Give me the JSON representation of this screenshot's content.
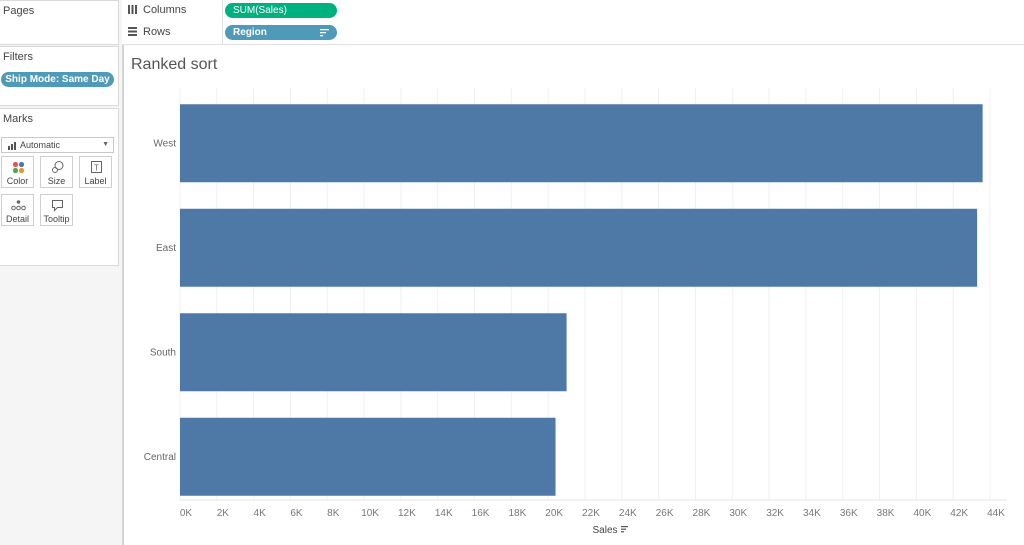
{
  "panels": {
    "pages": {
      "title": "Pages"
    },
    "filters": {
      "title": "Filters",
      "pill": "Ship Mode: Same Day"
    },
    "marks": {
      "title": "Marks",
      "type": "Automatic",
      "buttons": [
        {
          "label": "Color",
          "icon": "color-icon"
        },
        {
          "label": "Size",
          "icon": "size-icon"
        },
        {
          "label": "Label",
          "icon": "label-icon"
        },
        {
          "label": "Detail",
          "icon": "detail-icon"
        },
        {
          "label": "Tooltip",
          "icon": "tooltip-icon"
        }
      ]
    }
  },
  "shelves": {
    "columns": {
      "label": "Columns",
      "pill": "SUM(Sales)"
    },
    "rows": {
      "label": "Rows",
      "pill": "Region"
    }
  },
  "colors": {
    "bar": "#4e79a7",
    "measure_pill": "#00b180",
    "dimension_pill": "#4f9ab8"
  },
  "chart_data": {
    "type": "bar",
    "orientation": "horizontal",
    "title": "Ranked sort",
    "xlabel": "Sales",
    "ylabel": "",
    "categories": [
      "West",
      "East",
      "South",
      "Central"
    ],
    "values": [
      43600,
      43300,
      21000,
      20400
    ],
    "xlim": [
      0,
      44000
    ],
    "xticks": [
      0,
      2000,
      4000,
      6000,
      8000,
      10000,
      12000,
      14000,
      16000,
      18000,
      20000,
      22000,
      24000,
      26000,
      28000,
      30000,
      32000,
      34000,
      36000,
      38000,
      40000,
      42000,
      44000
    ],
    "xtick_labels": [
      "0K",
      "2K",
      "4K",
      "6K",
      "8K",
      "10K",
      "12K",
      "14K",
      "16K",
      "18K",
      "20K",
      "22K",
      "24K",
      "26K",
      "28K",
      "30K",
      "32K",
      "34K",
      "36K",
      "38K",
      "40K",
      "42K",
      "44K"
    ],
    "grid": true,
    "sorted": "descending"
  }
}
